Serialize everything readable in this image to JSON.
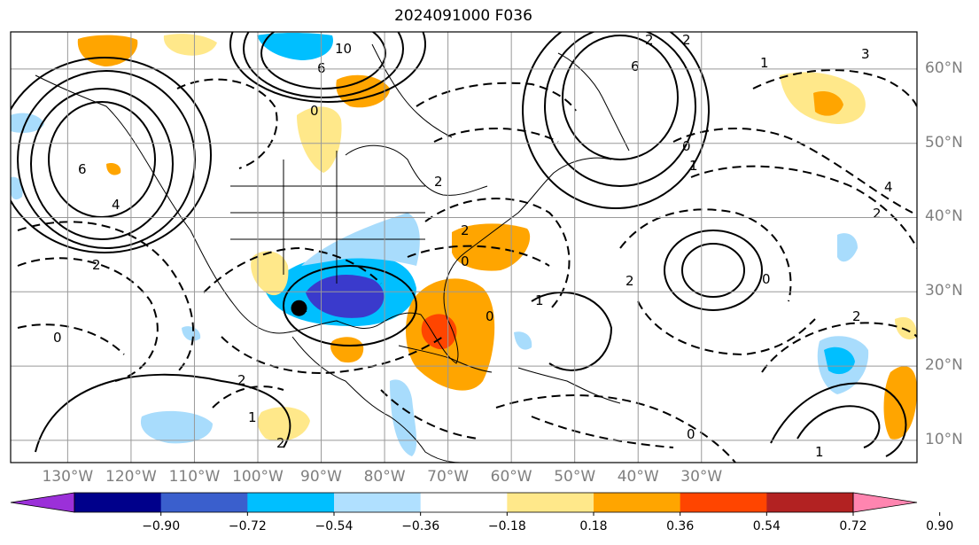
{
  "title": "2024091000 F036",
  "map": {
    "lon_range": [
      -139,
      4
    ],
    "lat_range": [
      7,
      65
    ],
    "latitude_labels": [
      "60°N",
      "50°N",
      "40°N",
      "30°N",
      "20°N",
      "10°N"
    ],
    "longitude_labels": [
      "130°W",
      "120°W",
      "110°W",
      "100°W",
      "90°W",
      "80°W",
      "70°W",
      "60°W",
      "50°W",
      "40°W",
      "30°W"
    ],
    "storm_marker": {
      "lon": -93.5,
      "lat": 27.8,
      "label": ""
    },
    "contour_labels": [
      "10",
      "6",
      "6",
      "4",
      "6",
      "2",
      "2",
      "1",
      "0",
      "0",
      "1",
      "2",
      "0",
      "4",
      "3",
      "2",
      "0",
      "2",
      "2",
      "0",
      "1",
      "2",
      "1",
      "0",
      "1",
      "2",
      "0",
      "2",
      "2",
      "1"
    ],
    "shading_colors": {
      "strong_negative": "#3a3acc",
      "moderate_negative": "#00bfff",
      "weak_negative": "#a8dcfc",
      "weak_positive": "#ffe88a",
      "moderate_positive": "#ffa500",
      "strong_positive": "#ff4500"
    }
  },
  "colorbar": {
    "ticks": [
      "−0.90",
      "−0.72",
      "−0.54",
      "−0.36",
      "−0.18",
      "0.18",
      "0.36",
      "0.54",
      "0.72",
      "0.90"
    ],
    "colors": [
      "#9b30d9",
      "#00008b",
      "#3a5fcd",
      "#00bfff",
      "#b0e0ff",
      "#ffffff",
      "#ffe88a",
      "#ffa500",
      "#ff4500",
      "#b22222",
      "#ff85b0"
    ]
  }
}
